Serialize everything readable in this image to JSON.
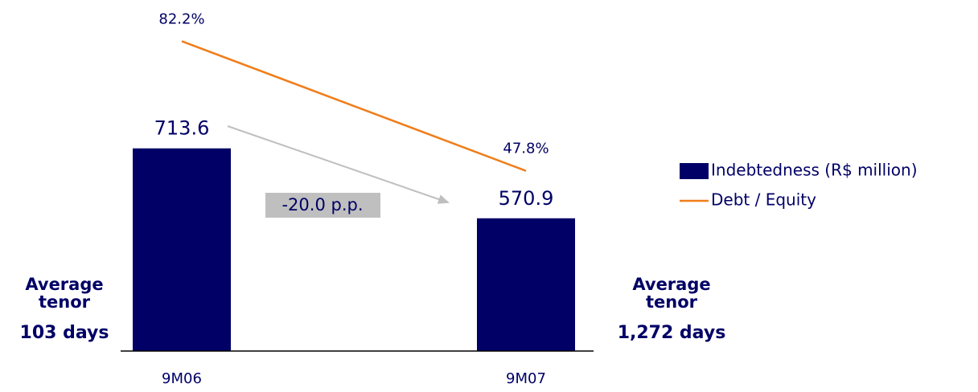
{
  "chart_data": {
    "type": "bar",
    "categories": [
      "9M06",
      "9M07"
    ],
    "series": [
      {
        "name": "Indebtedness (R$ million)",
        "type": "bar",
        "color": "#000066",
        "values": [
          713.6,
          570.9
        ]
      },
      {
        "name": "Debt / Equity",
        "type": "line",
        "color": "#f07d1a",
        "axis": "y2",
        "values": [
          82.2,
          47.8
        ],
        "value_labels": [
          "82.2%",
          "47.8%"
        ]
      }
    ],
    "ylim": [
      300,
      1000
    ],
    "y2lim": [
      0,
      91
    ],
    "legend": "right",
    "annotations": [
      {
        "text": "-20.0 p.p."
      }
    ],
    "tenor_labels": [
      {
        "title_lines": [
          "Average",
          "tenor"
        ],
        "value": "103 days"
      },
      {
        "title_lines": [
          "Average",
          "tenor"
        ],
        "value": "1,272 days"
      }
    ]
  }
}
